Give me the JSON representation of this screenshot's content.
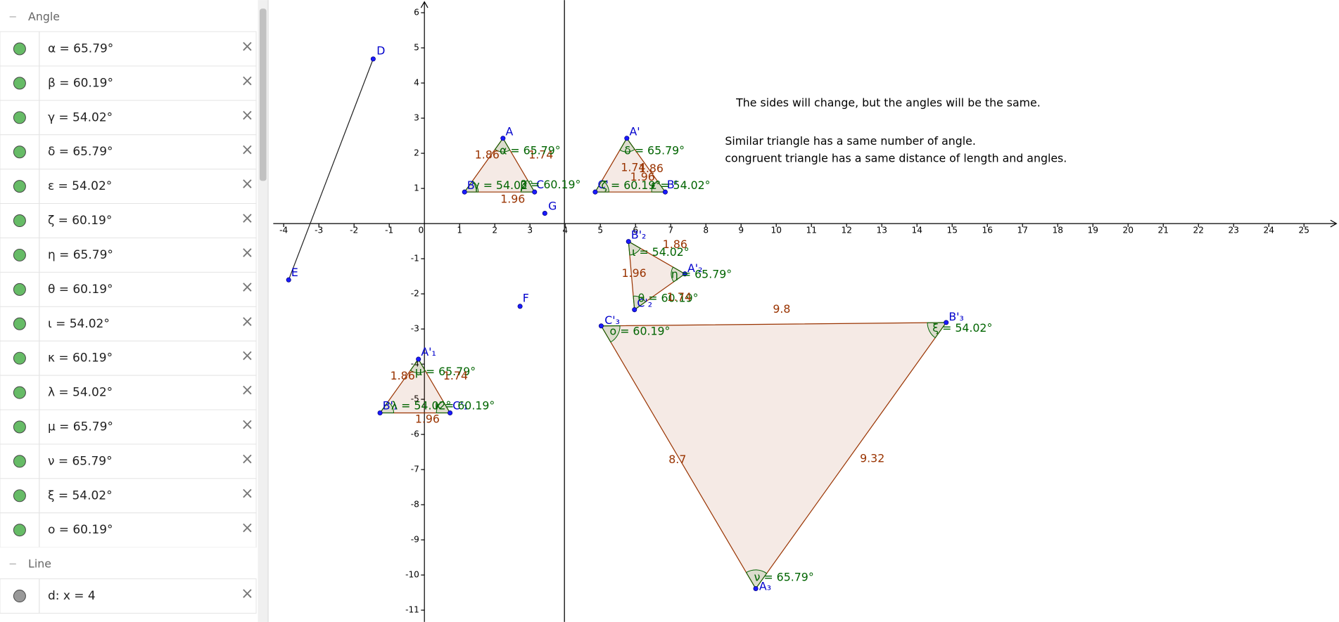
{
  "algebra": {
    "groups": [
      {
        "title": "Angle",
        "items": [
          "α = 65.79°",
          "β = 60.19°",
          "γ = 54.02°",
          "δ = 65.79°",
          "ε = 54.02°",
          "ζ = 60.19°",
          "η = 65.79°",
          "θ = 60.19°",
          "ι = 54.02°",
          "κ = 60.19°",
          "λ = 54.02°",
          "μ = 65.79°",
          "ν = 65.79°",
          "ξ = 54.02°",
          "ο = 60.19°"
        ]
      },
      {
        "title": "Line",
        "items": [
          "d: x = 4"
        ]
      }
    ]
  },
  "graphics": {
    "notes": [
      "The sides will change, but the angles will be the same.",
      "Similar triangle has a same number of angle.",
      "congruent triangle has a same distance of length and angles."
    ],
    "xticks": [
      -4,
      -3,
      -2,
      -1,
      0,
      1,
      2,
      3,
      4,
      5,
      6,
      7,
      8,
      9,
      10,
      11,
      12,
      13,
      14,
      15,
      16,
      17,
      18,
      19,
      20,
      21,
      22,
      23,
      24,
      25
    ],
    "yticks": [
      6,
      5,
      4,
      3,
      2,
      1,
      -1,
      -2,
      -3,
      -4,
      -5,
      -6,
      -7,
      -8,
      -9,
      -10,
      -11
    ],
    "labels": [
      "D",
      "E",
      "F",
      "G",
      "A",
      "B",
      "C",
      "1.86",
      "1.74",
      "1.96",
      "α = 65.79°",
      "γ = 54.02°",
      "β = 60.19°",
      "A'",
      "C'",
      "B'",
      "δ = 65.79°",
      "ζ = 60.19°",
      "ε = 54.02°",
      "1.74",
      "1.86",
      "1.96",
      "B'₂",
      "A'₂",
      "C'₂",
      "ι = 54.02°",
      "η = 65.79°",
      "θ = 60.19°",
      "1.86",
      "1.96",
      "1.74",
      "C'₃",
      "B'₃",
      "A₃",
      "ο = 60.19°",
      "ξ = 54.02°",
      "ν = 65.79°",
      "9.8",
      "8.7",
      "9.32",
      "A'₁",
      "B'₁",
      "C'₁",
      "μ = 65.79°",
      "λ = 54.02°",
      "κ = 60.19°",
      "1.86",
      "1.74",
      "1.96"
    ]
  }
}
